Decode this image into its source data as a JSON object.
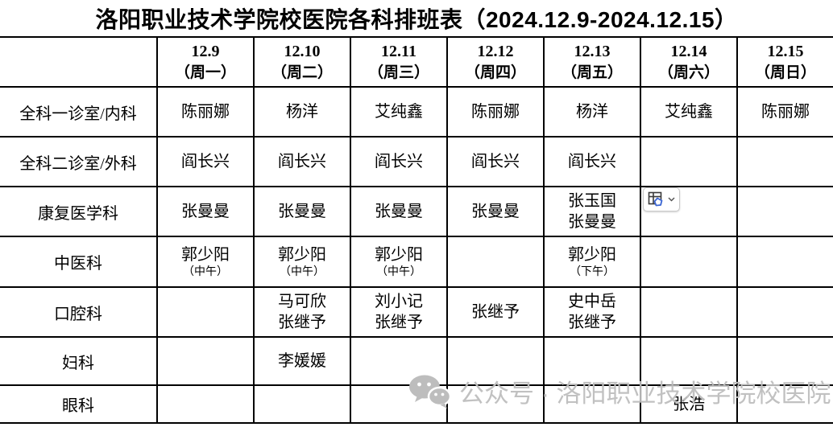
{
  "title": "洛阳职业技术学院校医院各科排班表（2024.12.9-2024.12.15）",
  "colors": {
    "text": "#000000",
    "border": "#000000",
    "watermark": "#bebebe",
    "paste_accent": "#3b66d4"
  },
  "table": {
    "corner_label": "",
    "columns": [
      {
        "date": "12.9",
        "weekday": "（周一）"
      },
      {
        "date": "12.10",
        "weekday": "（周二）"
      },
      {
        "date": "12.11",
        "weekday": "（周三）"
      },
      {
        "date": "12.12",
        "weekday": "（周四）"
      },
      {
        "date": "12.13",
        "weekday": "（周五）"
      },
      {
        "date": "12.14",
        "weekday": "（周六）"
      },
      {
        "date": "12.15",
        "weekday": "（周日）"
      }
    ],
    "rows": [
      {
        "department": "全科一诊室/内科",
        "cells": [
          [
            {
              "text": "陈丽娜"
            }
          ],
          [
            {
              "text": "杨洋"
            }
          ],
          [
            {
              "text": "艾纯鑫"
            }
          ],
          [
            {
              "text": "陈丽娜"
            }
          ],
          [
            {
              "text": "杨洋"
            }
          ],
          [
            {
              "text": "艾纯鑫"
            }
          ],
          [
            {
              "text": "陈丽娜"
            }
          ]
        ]
      },
      {
        "department": "全科二诊室/外科",
        "cells": [
          [
            {
              "text": "阎长兴"
            }
          ],
          [
            {
              "text": "阎长兴"
            }
          ],
          [
            {
              "text": "阎长兴"
            }
          ],
          [
            {
              "text": "阎长兴"
            }
          ],
          [
            {
              "text": "阎长兴"
            }
          ],
          [],
          []
        ]
      },
      {
        "department": "康复医学科",
        "cells": [
          [
            {
              "text": "张曼曼"
            }
          ],
          [
            {
              "text": "张曼曼"
            }
          ],
          [
            {
              "text": "张曼曼"
            }
          ],
          [
            {
              "text": "张曼曼"
            }
          ],
          [
            {
              "text": "张玉国"
            },
            {
              "text": "张曼曼"
            }
          ],
          [],
          []
        ]
      },
      {
        "department": "中医科",
        "cells": [
          [
            {
              "text": "郭少阳"
            },
            {
              "text": "（中午）",
              "small": true
            }
          ],
          [
            {
              "text": "郭少阳"
            },
            {
              "text": "（中午）",
              "small": true
            }
          ],
          [
            {
              "text": "郭少阳"
            },
            {
              "text": "（中午）",
              "small": true
            }
          ],
          [],
          [
            {
              "text": "郭少阳"
            },
            {
              "text": "（下午）",
              "small": true
            }
          ],
          [],
          []
        ]
      },
      {
        "department": "口腔科",
        "cells": [
          [],
          [
            {
              "text": "马可欣"
            },
            {
              "text": "张继予"
            }
          ],
          [
            {
              "text": "刘小记"
            },
            {
              "text": "张继予"
            }
          ],
          [
            {
              "text": "张继予"
            }
          ],
          [
            {
              "text": "史中岳"
            },
            {
              "text": "张继予"
            }
          ],
          [],
          []
        ]
      },
      {
        "department": "妇科",
        "cells": [
          [],
          [
            {
              "text": "李媛媛"
            }
          ],
          [],
          [],
          [],
          [],
          []
        ]
      },
      {
        "department": "眼科",
        "cells": [
          [],
          [],
          [],
          [],
          [],
          [
            {
              "text": "张浩"
            }
          ],
          []
        ]
      }
    ]
  },
  "paste_button": {
    "icon": "paste-options-table-icon",
    "chevron_icon": "chevron-down-icon"
  },
  "watermark": {
    "icon": "wechat-icon",
    "text": "公众号 · 洛阳职业技术学院校医院"
  }
}
